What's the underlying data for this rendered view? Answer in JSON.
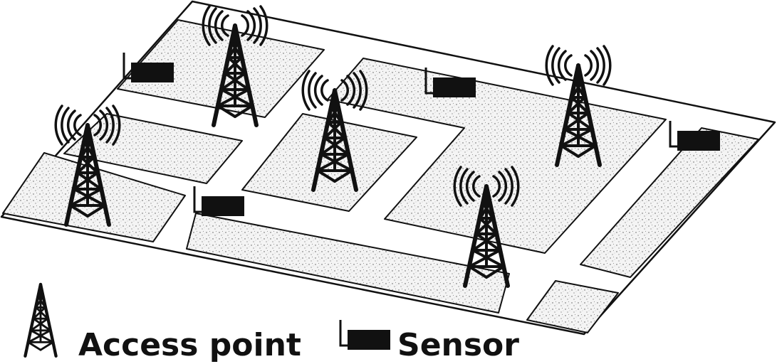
{
  "legend": {
    "access_point_label": "Access point",
    "sensor_label": "Sensor"
  },
  "icons": {
    "access_point": "cell-tower-icon",
    "sensor": "sensor-icon"
  },
  "colors": {
    "ink": "#111111",
    "ground": "#ffffff",
    "block_fill": "#f2f2f2"
  }
}
